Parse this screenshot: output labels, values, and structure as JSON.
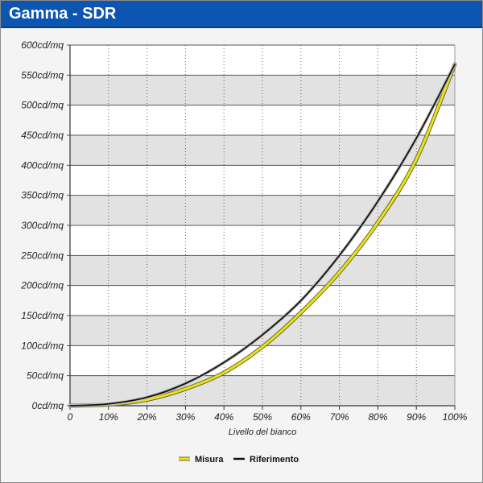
{
  "header": {
    "title": "Gamma - SDR"
  },
  "colors": {
    "header": "#0d55b0",
    "misura": "#e8e020",
    "riferimento": "#111111",
    "band": "#e2e2e2",
    "plot_bg": "#ffffff"
  },
  "chart_data": {
    "type": "line",
    "title": "Gamma - SDR",
    "xlabel": "Livello del bianco",
    "ylabel": "",
    "xlim": [
      0,
      100
    ],
    "ylim": [
      0,
      600
    ],
    "x_ticks": [
      0,
      10,
      20,
      30,
      40,
      50,
      60,
      70,
      80,
      90,
      100
    ],
    "x_tick_labels": [
      "0",
      "10%",
      "20%",
      "30%",
      "40%",
      "50%",
      "60%",
      "70%",
      "80%",
      "90%",
      "100%"
    ],
    "y_ticks": [
      0,
      50,
      100,
      150,
      200,
      250,
      300,
      350,
      400,
      450,
      500,
      550,
      600
    ],
    "y_tick_labels": [
      "0cd/mq",
      "50cd/mq",
      "100cd/mq",
      "150cd/mq",
      "200cd/mq",
      "250cd/mq",
      "300cd/mq",
      "350cd/mq",
      "400cd/mq",
      "450cd/mq",
      "500cd/mq",
      "550cd/mq",
      "600cd/mq"
    ],
    "grid": true,
    "legend": "bottom-center",
    "series": [
      {
        "name": "Misura",
        "color": "#e8e020",
        "x": [
          0,
          10,
          20,
          30,
          40,
          50,
          60,
          70,
          80,
          90,
          100
        ],
        "y": [
          0,
          2,
          10,
          28,
          55,
          98,
          155,
          222,
          305,
          410,
          568
        ]
      },
      {
        "name": "Riferimento",
        "color": "#111111",
        "x": [
          0,
          10,
          20,
          30,
          40,
          50,
          60,
          70,
          80,
          90,
          100
        ],
        "y": [
          0,
          3,
          14,
          37,
          72,
          118,
          175,
          250,
          340,
          445,
          568
        ]
      }
    ]
  }
}
